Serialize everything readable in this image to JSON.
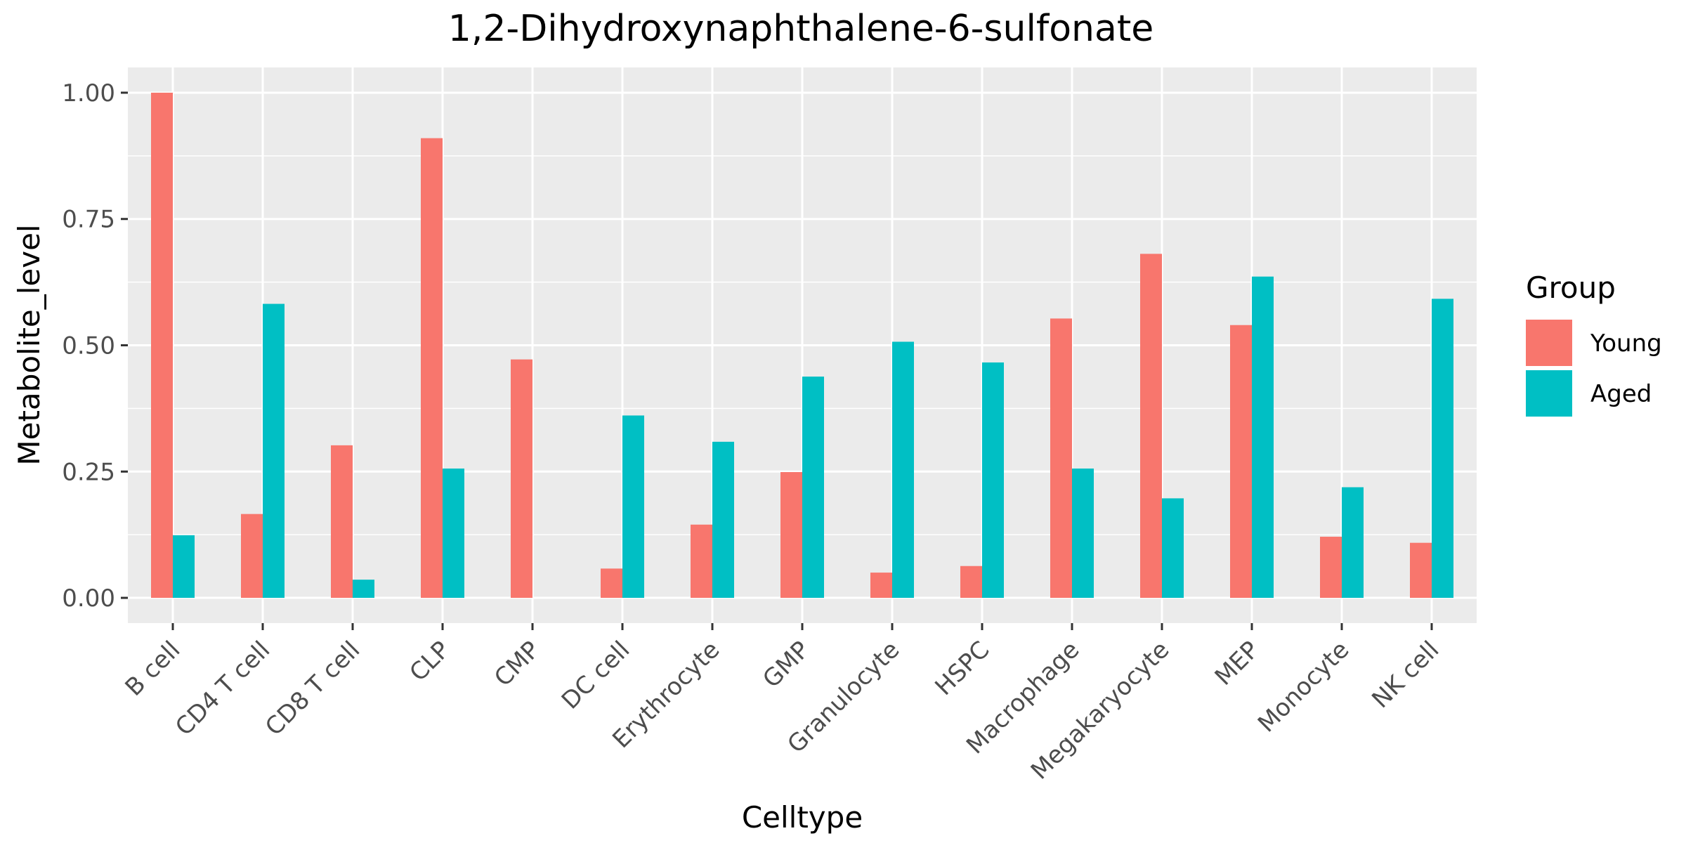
{
  "chart_data": {
    "type": "bar",
    "title": "1,2-Dihydroxynaphthalene-6-sulfonate",
    "xlabel": "Celltype",
    "ylabel": "Metabolite_level",
    "ylim": [
      -0.05,
      1.05
    ],
    "yticks": [
      0.0,
      0.25,
      0.5,
      0.75,
      1.0
    ],
    "ytick_labels": [
      "0.00",
      "0.25",
      "0.50",
      "0.75",
      "1.00"
    ],
    "grid": true,
    "legend": {
      "title": "Group",
      "position": "right"
    },
    "categories": [
      "B cell",
      "CD4 T cell",
      "CD8 T cell",
      "CLP",
      "CMP",
      "DC cell",
      "Erythrocyte",
      "GMP",
      "Granulocyte",
      "HSPC",
      "Macrophage",
      "Megakaryocyte",
      "MEP",
      "Monocyte",
      "NK cell"
    ],
    "series": [
      {
        "name": "Young",
        "color": "#F8766D",
        "values": [
          1.0,
          0.166,
          0.302,
          0.91,
          0.472,
          0.058,
          0.145,
          0.249,
          0.05,
          0.063,
          0.553,
          0.681,
          0.54,
          0.121,
          0.109
        ]
      },
      {
        "name": "Aged",
        "color": "#00BFC4",
        "values": [
          0.124,
          0.582,
          0.036,
          0.256,
          0.0,
          0.361,
          0.309,
          0.438,
          0.507,
          0.466,
          0.256,
          0.197,
          0.636,
          0.219,
          0.592
        ]
      }
    ]
  }
}
